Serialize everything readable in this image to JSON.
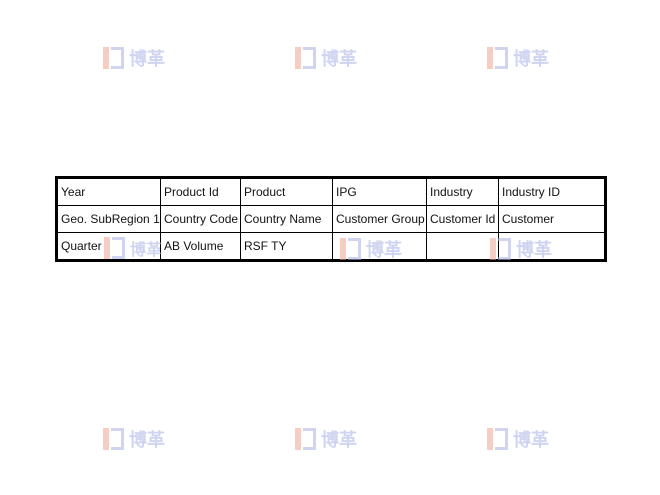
{
  "watermark": {
    "text": "博革",
    "colors": {
      "left_bar": "#f3a58f",
      "glyph": "#a9b4e6"
    }
  },
  "table": {
    "rows": [
      [
        "Year",
        "Product Id",
        "Product",
        "IPG",
        "Industry",
        "Industry ID"
      ],
      [
        "Geo. SubRegion 1",
        "Country Code",
        "Country Name",
        "Customer Group",
        "Customer Id",
        "Customer"
      ],
      [
        "Quarter",
        "AB Volume",
        "RSF TY",
        "",
        "",
        ""
      ]
    ]
  }
}
